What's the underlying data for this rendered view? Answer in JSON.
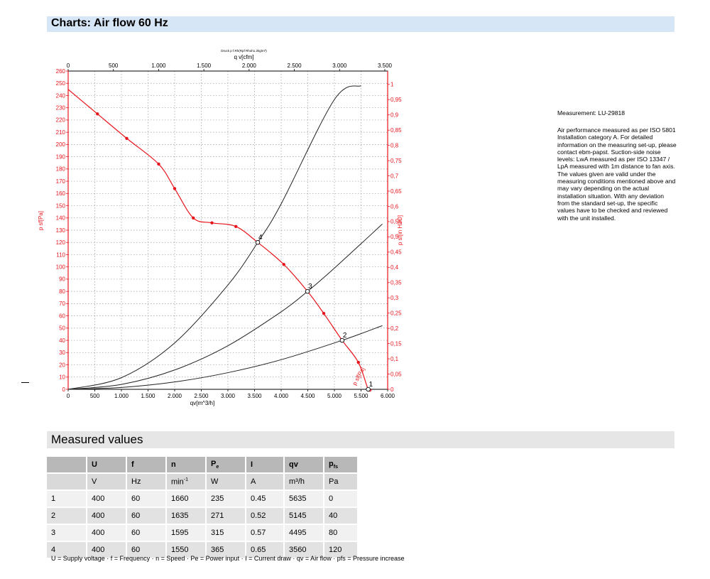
{
  "section_title": "Charts: Air flow 60 Hz",
  "measured_title": "Measured values",
  "measurement_id": "Measurement: LU-29818",
  "measurement_text": "Air performance measured as per ISO 5801 Installation category A. For detailed information on the measuring set-up, please contact ebm-papst. Suction-side noise levels: LwA measured as per ISO 13347 / LpA measured with 1m distance to fan axis. The values given are valid under the measuring conditions mentioned above and may vary depending on the actual installation situation. With any deviation from the standard set-up, the specific values have to be checked and reviewed with the unit installed.",
  "chart_data": {
    "type": "line",
    "title": "Druck p f.Rh(Rpf Rhoh1.2kg/m³)",
    "xlabel": "qv[m^3/h]",
    "x2label": "q v[cfm]",
    "ylabel": "p sf[Pa]",
    "y2label": "p sf[in H2O]",
    "xlim": [
      0,
      6000
    ],
    "ylim": [
      0,
      260
    ],
    "x2lim": [
      0,
      3500
    ],
    "y2lim": [
      0,
      1
    ],
    "x_ticks": [
      "0",
      "500",
      "1.000",
      "1.500",
      "2.000",
      "2.500",
      "3.000",
      "3.500",
      "4.000",
      "4.500",
      "5.000",
      "5.500",
      "6.000"
    ],
    "x2_ticks": [
      "0",
      "500",
      "1.000",
      "1.500",
      "2.000",
      "2.500",
      "3.000",
      "3.500"
    ],
    "y_ticks": [
      "0",
      "10",
      "20",
      "30",
      "40",
      "50",
      "60",
      "70",
      "80",
      "90",
      "100",
      "110",
      "120",
      "130",
      "140",
      "150",
      "160",
      "170",
      "180",
      "190",
      "200",
      "210",
      "220",
      "230",
      "240",
      "250",
      "260"
    ],
    "y2_ticks": [
      "0",
      "0,05",
      "0,1",
      "0,15",
      "0,2",
      "0,25",
      "0,3",
      "0,35",
      "0,4",
      "0,45",
      "0,5",
      "0,55",
      "0,6",
      "0,65",
      "0,7",
      "0,75",
      "0,8",
      "0,85",
      "0,9",
      "0,95",
      "1"
    ],
    "grid": true,
    "series": [
      {
        "name": "p sf[Pa]",
        "color": "#e8141b",
        "x": [
          0,
          550,
          1100,
          1700,
          2000,
          2350,
          2700,
          3150,
          3560,
          4050,
          4495,
          4800,
          5145,
          5450,
          5635,
          5700
        ],
        "y": [
          245,
          225,
          205,
          184,
          164,
          140,
          136,
          133,
          120,
          102,
          80,
          62,
          40,
          22,
          0,
          0
        ]
      }
    ],
    "system_curves": [
      {
        "x": [
          0,
          1000,
          2000,
          3000,
          3560,
          4000,
          5000,
          5500
        ],
        "y": [
          0,
          9.5,
          37.9,
          85.2,
          120,
          151.5,
          236.7,
          248.0
        ]
      },
      {
        "x": [
          0,
          1000,
          2000,
          3000,
          4000,
          4495,
          5000,
          5900
        ],
        "y": [
          0,
          4,
          15.8,
          35.6,
          63.3,
          80,
          99,
          135
        ]
      },
      {
        "x": [
          0,
          1000,
          2000,
          3000,
          4000,
          5145,
          5900
        ],
        "y": [
          0,
          1.5,
          6,
          13.6,
          24.2,
          40,
          52
        ]
      }
    ],
    "operating_points": [
      {
        "label": "1",
        "x": 5635,
        "y": 0
      },
      {
        "label": "2",
        "x": 5145,
        "y": 40
      },
      {
        "label": "3",
        "x": 4495,
        "y": 80
      },
      {
        "label": "4",
        "x": 3560,
        "y": 120
      }
    ]
  },
  "table": {
    "headers": [
      "",
      "U",
      "f",
      "n",
      "Pe",
      "I",
      "qv",
      "pfs"
    ],
    "units": [
      "",
      "V",
      "Hz",
      "min-1",
      "W",
      "A",
      "m³/h",
      "Pa"
    ],
    "rows": [
      [
        "1",
        "400",
        "60",
        "1660",
        "235",
        "0.45",
        "5635",
        "0"
      ],
      [
        "2",
        "400",
        "60",
        "1635",
        "271",
        "0.52",
        "5145",
        "40"
      ],
      [
        "3",
        "400",
        "60",
        "1595",
        "315",
        "0.57",
        "4495",
        "80"
      ],
      [
        "4",
        "400",
        "60",
        "1550",
        "365",
        "0.65",
        "3560",
        "120"
      ]
    ]
  },
  "legend_text": "U = Supply voltage · f = Frequency · n = Speed · Pe = Power input · I = Current draw · qv = Air flow · pfs = Pressure increase"
}
